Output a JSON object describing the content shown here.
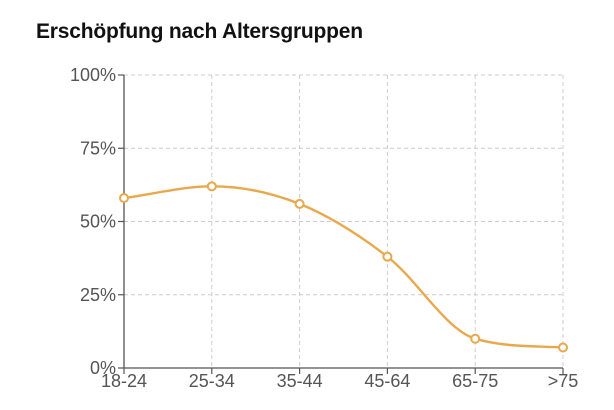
{
  "chart_data": {
    "type": "line",
    "title": "Erschöpfung nach Altersgruppen",
    "xlabel": "",
    "ylabel": "",
    "categories": [
      "18-24",
      "25-34",
      "35-44",
      "45-64",
      "65-75",
      ">75"
    ],
    "series": [
      {
        "values": [
          58,
          62,
          56,
          38,
          10,
          7
        ]
      }
    ],
    "ylim": [
      0,
      100
    ],
    "yticks": [
      0,
      25,
      50,
      75,
      100
    ],
    "ytick_labels": [
      "0%",
      "25%",
      "50%",
      "75%",
      "100%"
    ],
    "grid": true,
    "grid_style": "dashed",
    "smooth": true,
    "line_color": "#E8A94E",
    "point_fill": "#FFFFFF",
    "grid_color": "#CCCCCC",
    "axis_color": "#555555"
  }
}
